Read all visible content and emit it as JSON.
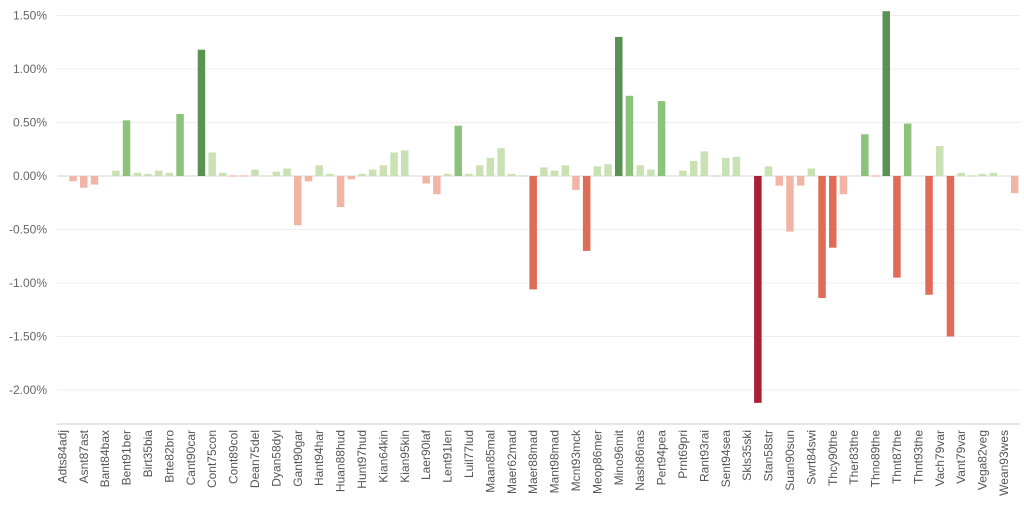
{
  "chart_data": {
    "type": "bar",
    "title": "",
    "xlabel": "",
    "ylabel": "",
    "ylim": [
      -2.25,
      1.55
    ],
    "y_ticks": [
      1.5,
      1.0,
      0.5,
      0.0,
      -0.5,
      -1.0,
      -1.5,
      -2.0
    ],
    "y_tick_labels": [
      "1.50%",
      "1.00%",
      "0.50%",
      "0.00%",
      "-0.50%",
      "-1.00%",
      "-1.50%",
      "-2.00%"
    ],
    "grid": "horizontal",
    "labeled_categories": [
      "Adts84adj",
      "Asnt87ast",
      "Bant84bax",
      "Bent91ber",
      "Birt35bia",
      "Brte82bro",
      "Cant90car",
      "Cont75con",
      "Cont89col",
      "Dean75del",
      "Dyan58dyl",
      "Gant90gar",
      "Hant94har",
      "Huan88hud",
      "Hunt97hud",
      "Kian64kin",
      "Kian95kin",
      "Laer90laf",
      "Lent91len",
      "Luil77lud",
      "Maan85mal",
      "Maer62mad",
      "Maer88mad",
      "Mant98mad",
      "Mcnt93mck",
      "Meop86mer",
      "Mino96mit",
      "Nash86nas",
      "Pert94pea",
      "Prnt69pri",
      "Rant93rai",
      "Sent94sea",
      "Skls35ski",
      "Stan58str",
      "Suan90sun",
      "Swrt84swi",
      "Thcy90the",
      "Ther83the",
      "Thno89the",
      "Thnt87the",
      "Thnt93the",
      "Vach79var",
      "Vant79var",
      "Vega82veg",
      "Wean93wes"
    ],
    "values": [
      0.01,
      -0.05,
      -0.11,
      -0.08,
      0.0,
      0.05,
      0.52,
      0.03,
      0.02,
      0.05,
      0.03,
      0.58,
      0.01,
      1.18,
      0.22,
      0.03,
      -0.01,
      -0.01,
      0.06,
      0.01,
      0.04,
      0.07,
      -0.46,
      -0.05,
      0.1,
      0.02,
      -0.29,
      -0.03,
      0.02,
      0.06,
      0.1,
      0.22,
      0.24,
      0.0,
      -0.07,
      -0.17,
      0.02,
      0.47,
      0.02,
      0.1,
      0.17,
      0.26,
      0.02,
      0.01,
      -1.06,
      0.08,
      0.05,
      0.1,
      -0.13,
      -0.7,
      0.09,
      0.11,
      1.3,
      0.75,
      0.1,
      0.06,
      0.7,
      0.0,
      0.05,
      0.14,
      0.23,
      0.01,
      0.17,
      0.18,
      0.0,
      -2.12,
      0.09,
      -0.09,
      -0.52,
      -0.09,
      0.07,
      -1.14,
      -0.67,
      -0.17,
      0.0,
      0.39,
      -0.01,
      1.54,
      -0.95,
      0.49,
      0.0,
      -1.11,
      0.28,
      -1.5,
      0.03,
      0.01,
      0.02,
      0.03,
      0.0,
      -0.16
    ],
    "color_scale": {
      "neg_strong": "#a81f36",
      "neg_mid": "#e06b56",
      "neg_light": "#f2b5a5",
      "zero": "#e0dccd",
      "pos_light": "#c9e1b3",
      "pos_mid": "#8cc27a",
      "pos_strong": "#5a9253"
    }
  }
}
